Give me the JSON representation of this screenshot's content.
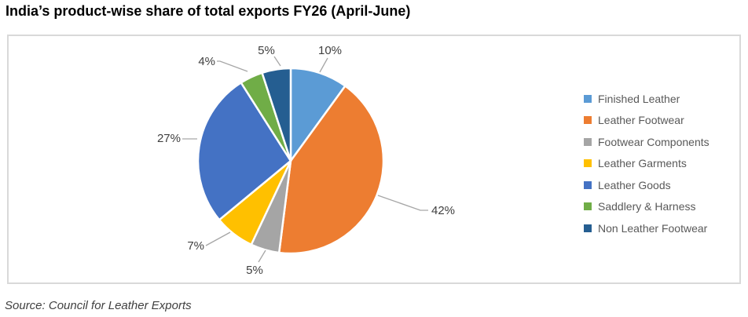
{
  "header": {
    "title": "India’s product-wise share of total exports FY26 (April-June)"
  },
  "chart_data": {
    "type": "pie",
    "title": "India’s product-wise share of total exports FY26 (April-June)",
    "categories": [
      "Finished Leather",
      "Leather Footwear",
      "Footwear Components",
      "Leather Garments",
      "Leather Goods",
      "Saddlery & Harness",
      "Non Leather Footwear"
    ],
    "values": [
      10,
      42,
      5,
      7,
      27,
      4,
      5
    ],
    "labels": [
      "10%",
      "42%",
      "5%",
      "7%",
      "27%",
      "4%",
      "5%"
    ],
    "colors": [
      "#5B9BD5",
      "#ED7D31",
      "#A5A5A5",
      "#FFC000",
      "#4472C4",
      "#70AD47",
      "#255E91"
    ],
    "unit": "percent",
    "start_angle": "12-oclock-clockwise",
    "legend_position": "right",
    "slice_border_color": "#FFFFFF",
    "leader_line_color": "#A6A6A6",
    "data_label_color": "#404040",
    "legend_text_color": "#595959",
    "frame_border_color": "#D9D9D9"
  },
  "footer": {
    "source": "Source: Council for Leather Exports"
  }
}
